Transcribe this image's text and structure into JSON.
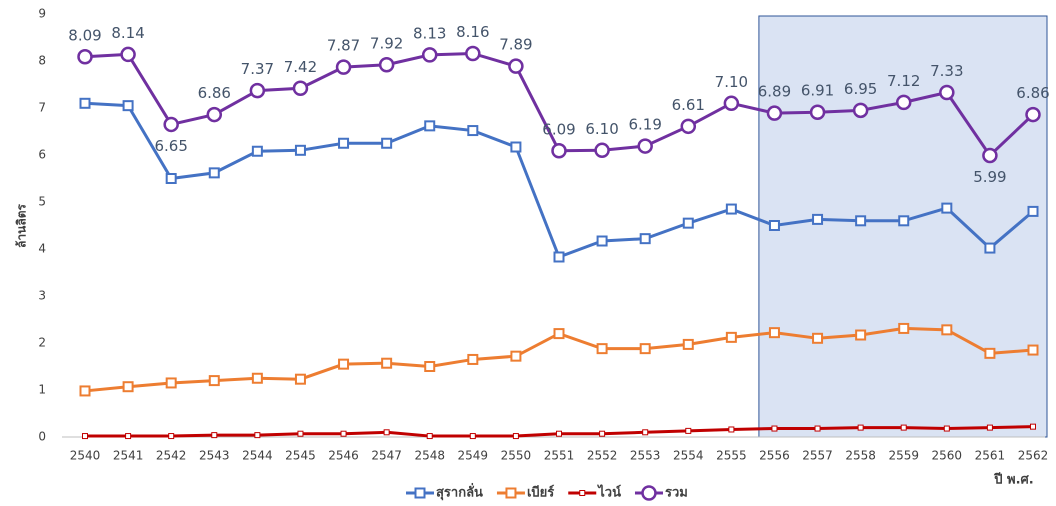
{
  "chart_data": {
    "type": "line",
    "y_label": "ล้านลิตร",
    "x_label": "ปี พ.ศ.",
    "categories": [
      "2540",
      "2541",
      "2542",
      "2543",
      "2544",
      "2545",
      "2546",
      "2547",
      "2548",
      "2549",
      "2550",
      "2551",
      "2552",
      "2553",
      "2554",
      "2555",
      "2556",
      "2557",
      "2558",
      "2559",
      "2560",
      "2561",
      "2562"
    ],
    "highlight_range": [
      "2556",
      "2562"
    ],
    "series": [
      {
        "name": "สุรากลั่น",
        "color": "#4472c4",
        "marker": "square",
        "values": [
          7.1,
          7.05,
          5.5,
          5.62,
          6.08,
          6.1,
          6.25,
          6.25,
          6.62,
          6.52,
          6.17,
          3.83,
          4.17,
          4.22,
          4.55,
          4.85,
          4.5,
          4.63,
          4.6,
          4.6,
          4.87,
          4.02,
          4.8
        ]
      },
      {
        "name": "เบียร์",
        "color": "#ed7d31",
        "marker": "square",
        "values": [
          0.98,
          1.07,
          1.15,
          1.2,
          1.25,
          1.23,
          1.55,
          1.57,
          1.5,
          1.65,
          1.72,
          2.2,
          1.88,
          1.88,
          1.97,
          2.12,
          2.22,
          2.1,
          2.17,
          2.31,
          2.28,
          1.78,
          1.85
        ]
      },
      {
        "name": "ไวน์",
        "color": "#c00000",
        "marker": "small-square",
        "values": [
          0.02,
          0.02,
          0.02,
          0.04,
          0.04,
          0.07,
          0.07,
          0.1,
          0.02,
          0.02,
          0.02,
          0.07,
          0.07,
          0.1,
          0.13,
          0.16,
          0.18,
          0.18,
          0.2,
          0.2,
          0.18,
          0.2,
          0.22
        ]
      },
      {
        "name": "รวม",
        "color": "#7030a0",
        "marker": "circle",
        "values": [
          8.09,
          8.14,
          6.65,
          6.86,
          7.37,
          7.42,
          7.87,
          7.92,
          8.13,
          8.16,
          7.89,
          6.09,
          6.1,
          6.19,
          6.61,
          7.1,
          6.89,
          6.91,
          6.95,
          7.12,
          7.33,
          5.99,
          6.86
        ],
        "value_labels": [
          "8.09",
          "8.14",
          "6.65",
          "6.86",
          "7.37",
          "7.42",
          "7.87",
          "7.92",
          "8.13",
          "8.16",
          "7.89",
          "6.09",
          "6.10",
          "6.19",
          "6.61",
          "7.10",
          "6.89",
          "6.91",
          "6.95",
          "7.12",
          "7.33",
          "5.99",
          "6.86"
        ]
      }
    ],
    "ylim": [
      0,
      9
    ],
    "yticks": [
      0,
      1,
      2,
      3,
      4,
      5,
      6,
      7,
      8,
      9
    ],
    "grid": false,
    "legend": "bottom"
  }
}
